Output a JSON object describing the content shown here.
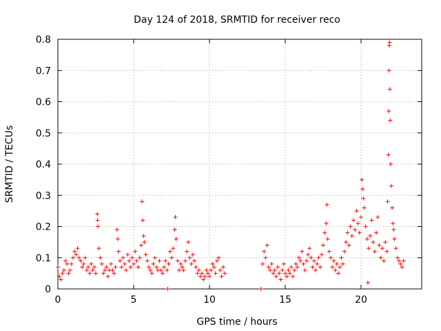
{
  "chart_data": {
    "type": "scatter",
    "title": "Day 124 of 2018, SRMTID for receiver reco",
    "xlabel": "GPS time / hours",
    "ylabel": "SRMTID / TECUs",
    "xlim": [
      0,
      24
    ],
    "ylim": [
      0,
      0.8
    ],
    "xticks": [
      0,
      5,
      10,
      15,
      20
    ],
    "xtick_labels": [
      "0",
      "5",
      "10",
      "15",
      "20"
    ],
    "yticks": [
      0,
      0.1,
      0.2,
      0.3,
      0.4,
      0.5,
      0.6,
      0.7,
      0.8
    ],
    "ytick_labels": [
      "0",
      "0.1",
      "0.2",
      "0.3",
      "0.4",
      "0.5",
      "0.6",
      "0.7",
      "0.8"
    ],
    "grid": true,
    "marker": "+",
    "marker_color": "#ff0000",
    "series": [
      {
        "name": "SRMTID",
        "points": [
          [
            0.0,
            0.07
          ],
          [
            0.1,
            0.04
          ],
          [
            0.2,
            0.03
          ],
          [
            0.3,
            0.05
          ],
          [
            0.4,
            0.06
          ],
          [
            0.5,
            0.09
          ],
          [
            0.6,
            0.08
          ],
          [
            0.7,
            0.05
          ],
          [
            0.8,
            0.06
          ],
          [
            0.9,
            0.08
          ],
          [
            1.0,
            0.1
          ],
          [
            1.1,
            0.12
          ],
          [
            1.2,
            0.11
          ],
          [
            1.3,
            0.13
          ],
          [
            1.4,
            0.1
          ],
          [
            1.5,
            0.09
          ],
          [
            1.6,
            0.07
          ],
          [
            1.7,
            0.08
          ],
          [
            1.8,
            0.1
          ],
          [
            1.9,
            0.06
          ],
          [
            2.0,
            0.07
          ],
          [
            2.1,
            0.05
          ],
          [
            2.2,
            0.08
          ],
          [
            2.3,
            0.06
          ],
          [
            2.4,
            0.07
          ],
          [
            2.5,
            0.05
          ],
          [
            2.6,
            0.24
          ],
          [
            2.62,
            0.22
          ],
          [
            2.64,
            0.2
          ],
          [
            2.7,
            0.13
          ],
          [
            2.8,
            0.1
          ],
          [
            2.9,
            0.08
          ],
          [
            3.0,
            0.05
          ],
          [
            3.1,
            0.06
          ],
          [
            3.2,
            0.07
          ],
          [
            3.3,
            0.04
          ],
          [
            3.4,
            0.06
          ],
          [
            3.5,
            0.08
          ],
          [
            3.6,
            0.06
          ],
          [
            3.7,
            0.05
          ],
          [
            3.8,
            0.07
          ],
          [
            3.9,
            0.19
          ],
          [
            3.95,
            0.16
          ],
          [
            4.0,
            0.12
          ],
          [
            4.1,
            0.09
          ],
          [
            4.2,
            0.07
          ],
          [
            4.3,
            0.1
          ],
          [
            4.4,
            0.08
          ],
          [
            4.5,
            0.06
          ],
          [
            4.6,
            0.11
          ],
          [
            4.7,
            0.09
          ],
          [
            4.8,
            0.07
          ],
          [
            4.9,
            0.1
          ],
          [
            5.0,
            0.08
          ],
          [
            5.1,
            0.12
          ],
          [
            5.2,
            0.09
          ],
          [
            5.3,
            0.07
          ],
          [
            5.4,
            0.1
          ],
          [
            5.5,
            0.14
          ],
          [
            5.55,
            0.28
          ],
          [
            5.6,
            0.22
          ],
          [
            5.65,
            0.17
          ],
          [
            5.7,
            0.15
          ],
          [
            5.8,
            0.11
          ],
          [
            5.9,
            0.09
          ],
          [
            6.0,
            0.07
          ],
          [
            6.1,
            0.06
          ],
          [
            6.2,
            0.05
          ],
          [
            6.3,
            0.08
          ],
          [
            6.4,
            0.1
          ],
          [
            6.5,
            0.07
          ],
          [
            6.6,
            0.06
          ],
          [
            6.7,
            0.09
          ],
          [
            6.8,
            0.06
          ],
          [
            6.9,
            0.05
          ],
          [
            7.0,
            0.07
          ],
          [
            7.1,
            0.09
          ],
          [
            7.2,
            0.06
          ],
          [
            7.25,
            0.0
          ],
          [
            7.3,
            0.08
          ],
          [
            7.4,
            0.12
          ],
          [
            7.5,
            0.1
          ],
          [
            7.6,
            0.13
          ],
          [
            7.7,
            0.19
          ],
          [
            7.75,
            0.23
          ],
          [
            7.8,
            0.16
          ],
          [
            7.9,
            0.09
          ],
          [
            8.0,
            0.06
          ],
          [
            8.1,
            0.08
          ],
          [
            8.2,
            0.07
          ],
          [
            8.3,
            0.06
          ],
          [
            8.4,
            0.09
          ],
          [
            8.5,
            0.12
          ],
          [
            8.6,
            0.15
          ],
          [
            8.7,
            0.1
          ],
          [
            8.8,
            0.08
          ],
          [
            8.9,
            0.11
          ],
          [
            9.0,
            0.09
          ],
          [
            9.1,
            0.07
          ],
          [
            9.2,
            0.05
          ],
          [
            9.3,
            0.06
          ],
          [
            9.4,
            0.04
          ],
          [
            9.5,
            0.05
          ],
          [
            9.6,
            0.03
          ],
          [
            9.7,
            0.04
          ],
          [
            9.8,
            0.06
          ],
          [
            9.9,
            0.05
          ],
          [
            10.0,
            0.04
          ],
          [
            10.1,
            0.06
          ],
          [
            10.2,
            0.08
          ],
          [
            10.3,
            0.07
          ],
          [
            10.4,
            0.05
          ],
          [
            10.5,
            0.09
          ],
          [
            10.6,
            0.1
          ],
          [
            10.7,
            0.06
          ],
          [
            10.8,
            0.04
          ],
          [
            10.9,
            0.07
          ],
          [
            11.0,
            0.05
          ],
          [
            13.4,
            0.0
          ],
          [
            13.5,
            0.08
          ],
          [
            13.6,
            0.12
          ],
          [
            13.7,
            0.1
          ],
          [
            13.8,
            0.14
          ],
          [
            13.9,
            0.07
          ],
          [
            14.0,
            0.06
          ],
          [
            14.1,
            0.08
          ],
          [
            14.2,
            0.05
          ],
          [
            14.3,
            0.06
          ],
          [
            14.4,
            0.04
          ],
          [
            14.5,
            0.07
          ],
          [
            14.6,
            0.05
          ],
          [
            14.7,
            0.03
          ],
          [
            14.8,
            0.06
          ],
          [
            14.9,
            0.08
          ],
          [
            15.0,
            0.05
          ],
          [
            15.1,
            0.04
          ],
          [
            15.2,
            0.06
          ],
          [
            15.3,
            0.05
          ],
          [
            15.4,
            0.07
          ],
          [
            15.5,
            0.04
          ],
          [
            15.6,
            0.06
          ],
          [
            15.7,
            0.08
          ],
          [
            15.8,
            0.07
          ],
          [
            15.9,
            0.1
          ],
          [
            16.0,
            0.09
          ],
          [
            16.1,
            0.12
          ],
          [
            16.2,
            0.08
          ],
          [
            16.3,
            0.06
          ],
          [
            16.4,
            0.09
          ],
          [
            16.5,
            0.11
          ],
          [
            16.6,
            0.13
          ],
          [
            16.7,
            0.1
          ],
          [
            16.8,
            0.07
          ],
          [
            16.9,
            0.09
          ],
          [
            17.0,
            0.06
          ],
          [
            17.1,
            0.08
          ],
          [
            17.2,
            0.1
          ],
          [
            17.3,
            0.07
          ],
          [
            17.4,
            0.11
          ],
          [
            17.5,
            0.14
          ],
          [
            17.6,
            0.18
          ],
          [
            17.7,
            0.21
          ],
          [
            17.75,
            0.27
          ],
          [
            17.8,
            0.16
          ],
          [
            17.9,
            0.12
          ],
          [
            18.0,
            0.1
          ],
          [
            18.1,
            0.07
          ],
          [
            18.2,
            0.09
          ],
          [
            18.3,
            0.06
          ],
          [
            18.4,
            0.08
          ],
          [
            18.5,
            0.05
          ],
          [
            18.6,
            0.07
          ],
          [
            18.7,
            0.1
          ],
          [
            18.8,
            0.08
          ],
          [
            18.9,
            0.12
          ],
          [
            19.0,
            0.15
          ],
          [
            19.1,
            0.18
          ],
          [
            19.2,
            0.14
          ],
          [
            19.3,
            0.2
          ],
          [
            19.4,
            0.17
          ],
          [
            19.5,
            0.22
          ],
          [
            19.6,
            0.19
          ],
          [
            19.7,
            0.25
          ],
          [
            19.8,
            0.21
          ],
          [
            19.9,
            0.18
          ],
          [
            20.0,
            0.23
          ],
          [
            20.05,
            0.35
          ],
          [
            20.1,
            0.32
          ],
          [
            20.15,
            0.29
          ],
          [
            20.2,
            0.26
          ],
          [
            20.3,
            0.2
          ],
          [
            20.4,
            0.16
          ],
          [
            20.45,
            0.02
          ],
          [
            20.5,
            0.13
          ],
          [
            20.6,
            0.17
          ],
          [
            20.7,
            0.22
          ],
          [
            20.8,
            0.15
          ],
          [
            20.9,
            0.12
          ],
          [
            21.0,
            0.18
          ],
          [
            21.1,
            0.23
          ],
          [
            21.2,
            0.14
          ],
          [
            21.3,
            0.1
          ],
          [
            21.4,
            0.13
          ],
          [
            21.5,
            0.09
          ],
          [
            21.6,
            0.15
          ],
          [
            21.7,
            0.12
          ],
          [
            21.75,
            0.28
          ],
          [
            21.8,
            0.43
          ],
          [
            21.82,
            0.57
          ],
          [
            21.84,
            0.7
          ],
          [
            21.86,
            0.78
          ],
          [
            21.88,
            0.79
          ],
          [
            21.9,
            0.64
          ],
          [
            21.92,
            0.54
          ],
          [
            21.95,
            0.4
          ],
          [
            22.0,
            0.33
          ],
          [
            22.05,
            0.26
          ],
          [
            22.1,
            0.21
          ],
          [
            22.15,
            0.19
          ],
          [
            22.2,
            0.16
          ],
          [
            22.3,
            0.13
          ],
          [
            22.4,
            0.1
          ],
          [
            22.5,
            0.09
          ],
          [
            22.6,
            0.08
          ],
          [
            22.7,
            0.07
          ],
          [
            22.8,
            0.09
          ]
        ]
      }
    ]
  }
}
